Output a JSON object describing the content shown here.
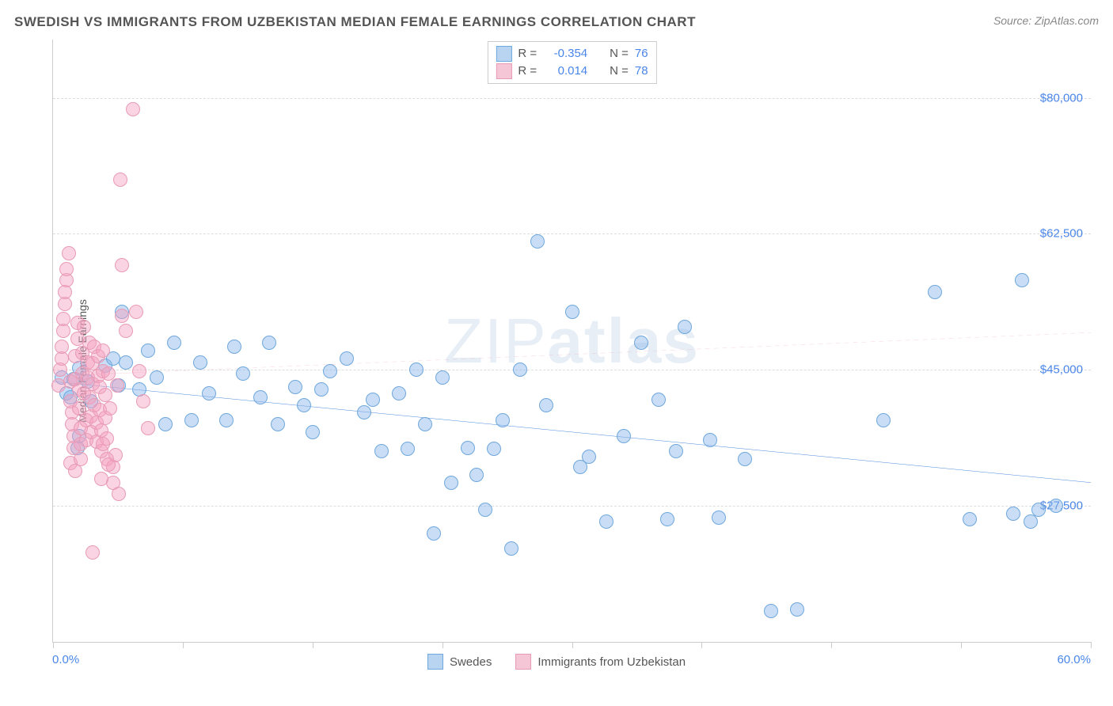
{
  "title": "SWEDISH VS IMMIGRANTS FROM UZBEKISTAN MEDIAN FEMALE EARNINGS CORRELATION CHART",
  "source_label": "Source:",
  "source_value": "ZipAtlas.com",
  "watermark_light": "ZIP",
  "watermark_bold": "atlas",
  "chart": {
    "type": "scatter",
    "ylabel": "Median Female Earnings",
    "xlim": [
      0,
      60
    ],
    "ylim": [
      10000,
      87500
    ],
    "xlim_labels": [
      "0.0%",
      "60.0%"
    ],
    "ytick_values": [
      27500,
      45000,
      62500,
      80000
    ],
    "ytick_labels": [
      "$27,500",
      "$45,000",
      "$62,500",
      "$80,000"
    ],
    "xtick_values": [
      0,
      7.5,
      15,
      22.5,
      30,
      37.5,
      45,
      52.5,
      60
    ],
    "grid_color": "#dddddd",
    "axis_color": "#cccccc",
    "background_color": "#ffffff",
    "marker_radius": 8,
    "series": [
      {
        "name": "Swedes",
        "color_fill": "rgba(135,180,235,0.45)",
        "color_stroke": "#6fa8dc",
        "swatch_fill": "#b8d4f0",
        "swatch_border": "#6fa8dc",
        "line_color": "#2e75d6",
        "line_width": 3,
        "line_dash": "none",
        "r_value": "-0.354",
        "n_value": "76",
        "trend": {
          "x1": 0,
          "y1": 43500,
          "x2": 60,
          "y2": 30500
        },
        "points": [
          [
            0.5,
            44000
          ],
          [
            0.8,
            42000
          ],
          [
            1.0,
            41500
          ],
          [
            1.2,
            43800
          ],
          [
            1.5,
            45200
          ],
          [
            1.4,
            35000
          ],
          [
            1.5,
            36500
          ],
          [
            2.0,
            43500
          ],
          [
            2.2,
            41000
          ],
          [
            3.0,
            45500
          ],
          [
            3.5,
            46500
          ],
          [
            3.8,
            43000
          ],
          [
            4.0,
            52500
          ],
          [
            4.2,
            46000
          ],
          [
            5.0,
            42500
          ],
          [
            5.5,
            47500
          ],
          [
            6.0,
            44000
          ],
          [
            6.5,
            38000
          ],
          [
            7.0,
            48500
          ],
          [
            8.0,
            38500
          ],
          [
            8.5,
            46000
          ],
          [
            9.0,
            42000
          ],
          [
            10.0,
            38500
          ],
          [
            10.5,
            48000
          ],
          [
            11.0,
            44500
          ],
          [
            12.0,
            41500
          ],
          [
            12.5,
            48500
          ],
          [
            13.0,
            38000
          ],
          [
            14.0,
            42800
          ],
          [
            14.5,
            40500
          ],
          [
            15.0,
            37000
          ],
          [
            15.5,
            42500
          ],
          [
            16.0,
            44800
          ],
          [
            17.0,
            46500
          ],
          [
            18.0,
            39500
          ],
          [
            18.5,
            41200
          ],
          [
            19.0,
            34500
          ],
          [
            20.0,
            42000
          ],
          [
            20.5,
            34800
          ],
          [
            21.0,
            45000
          ],
          [
            21.5,
            38000
          ],
          [
            22.0,
            24000
          ],
          [
            22.5,
            44000
          ],
          [
            23.0,
            30500
          ],
          [
            24.0,
            35000
          ],
          [
            24.5,
            31500
          ],
          [
            25.0,
            27000
          ],
          [
            25.5,
            34800
          ],
          [
            26.0,
            38500
          ],
          [
            26.5,
            22000
          ],
          [
            27.0,
            45000
          ],
          [
            28.0,
            61500
          ],
          [
            28.5,
            40500
          ],
          [
            30.0,
            52500
          ],
          [
            30.5,
            32500
          ],
          [
            31.0,
            33800
          ],
          [
            32.0,
            25500
          ],
          [
            33.0,
            36500
          ],
          [
            34.0,
            48500
          ],
          [
            35.0,
            41200
          ],
          [
            35.5,
            25800
          ],
          [
            36.0,
            34500
          ],
          [
            36.5,
            50500
          ],
          [
            38.0,
            36000
          ],
          [
            38.5,
            26000
          ],
          [
            40.0,
            33500
          ],
          [
            41.5,
            14000
          ],
          [
            43.0,
            14200
          ],
          [
            48.0,
            38500
          ],
          [
            51.0,
            55000
          ],
          [
            53.0,
            25800
          ],
          [
            55.5,
            26500
          ],
          [
            56.0,
            56500
          ],
          [
            56.5,
            25500
          ],
          [
            57.0,
            27000
          ],
          [
            58.0,
            27500
          ]
        ]
      },
      {
        "name": "Immigrants from Uzbekistan",
        "color_fill": "rgba(245,160,190,0.45)",
        "color_stroke": "#e89bb5",
        "swatch_fill": "#f5c6d6",
        "swatch_border": "#e89bb5",
        "line_color": "#e89bb5",
        "line_width": 1.5,
        "line_dash": "6,5",
        "r_value": "0.014",
        "n_value": "78",
        "trend": {
          "x1": 0,
          "y1": 44200,
          "x2": 60,
          "y2": 49800
        },
        "trend_solid_until": 5,
        "points": [
          [
            0.3,
            43000
          ],
          [
            0.4,
            45000
          ],
          [
            0.5,
            46500
          ],
          [
            0.5,
            48000
          ],
          [
            0.6,
            50000
          ],
          [
            0.6,
            51500
          ],
          [
            0.7,
            53500
          ],
          [
            0.7,
            55000
          ],
          [
            0.8,
            56500
          ],
          [
            0.8,
            58000
          ],
          [
            0.9,
            60000
          ],
          [
            1.0,
            43500
          ],
          [
            1.0,
            41000
          ],
          [
            1.1,
            39500
          ],
          [
            1.1,
            38000
          ],
          [
            1.2,
            36500
          ],
          [
            1.2,
            35000
          ],
          [
            1.3,
            43800
          ],
          [
            1.3,
            46800
          ],
          [
            1.4,
            49000
          ],
          [
            1.4,
            51000
          ],
          [
            1.5,
            42500
          ],
          [
            1.5,
            40000
          ],
          [
            1.6,
            37500
          ],
          [
            1.6,
            35500
          ],
          [
            1.7,
            44500
          ],
          [
            1.7,
            47200
          ],
          [
            1.8,
            50500
          ],
          [
            1.8,
            42000
          ],
          [
            1.9,
            38500
          ],
          [
            1.9,
            36000
          ],
          [
            2.0,
            44000
          ],
          [
            2.0,
            46000
          ],
          [
            2.1,
            48500
          ],
          [
            2.1,
            41500
          ],
          [
            2.2,
            39000
          ],
          [
            2.2,
            37000
          ],
          [
            2.3,
            43200
          ],
          [
            2.3,
            45800
          ],
          [
            2.4,
            48000
          ],
          [
            2.4,
            40500
          ],
          [
            2.5,
            38200
          ],
          [
            2.5,
            35800
          ],
          [
            2.6,
            44200
          ],
          [
            2.6,
            46800
          ],
          [
            2.7,
            42800
          ],
          [
            2.7,
            39800
          ],
          [
            2.8,
            37200
          ],
          [
            2.8,
            34500
          ],
          [
            2.9,
            44800
          ],
          [
            2.9,
            47500
          ],
          [
            3.0,
            41800
          ],
          [
            3.0,
            38800
          ],
          [
            3.1,
            36200
          ],
          [
            3.1,
            33500
          ],
          [
            3.2,
            44500
          ],
          [
            3.5,
            32500
          ],
          [
            3.5,
            30500
          ],
          [
            3.8,
            29000
          ],
          [
            3.9,
            69500
          ],
          [
            4.0,
            58500
          ],
          [
            4.0,
            52000
          ],
          [
            4.2,
            50000
          ],
          [
            4.6,
            78500
          ],
          [
            4.8,
            52500
          ],
          [
            5.0,
            44800
          ],
          [
            5.2,
            41000
          ],
          [
            5.5,
            37500
          ],
          [
            2.3,
            21500
          ],
          [
            2.8,
            31000
          ],
          [
            3.2,
            32800
          ],
          [
            3.6,
            34000
          ],
          [
            1.0,
            33000
          ],
          [
            1.3,
            32000
          ],
          [
            1.6,
            33500
          ],
          [
            2.9,
            35500
          ],
          [
            3.3,
            40000
          ],
          [
            3.7,
            43000
          ]
        ]
      }
    ]
  },
  "legend_top": {
    "r_label": "R =",
    "n_label": "N ="
  },
  "legend_bottom": [
    "Swedes",
    "Immigrants from Uzbekistan"
  ]
}
